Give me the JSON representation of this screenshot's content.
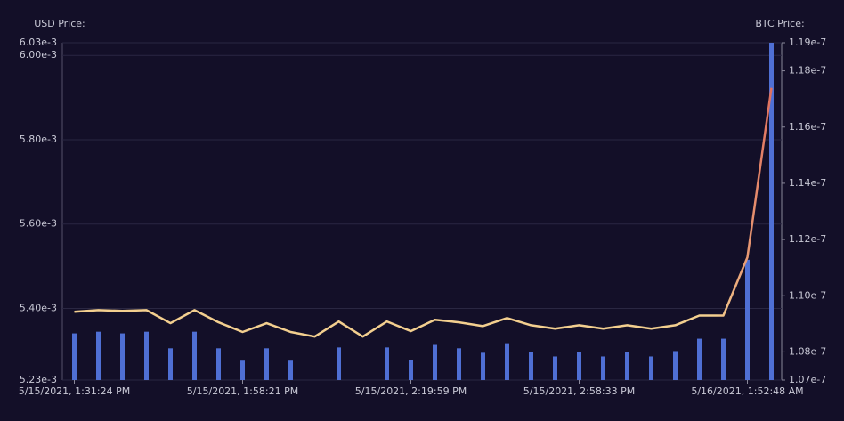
{
  "chart_data": {
    "type": "line-bar",
    "y_label": "USD Price:",
    "y2_label": "BTC Price:",
    "categories": [
      "5/15/2021, 1:31:24 PM",
      null,
      null,
      null,
      null,
      null,
      null,
      "5/15/2021, 1:58:21 PM",
      null,
      null,
      null,
      null,
      null,
      null,
      "5/15/2021, 2:19:59 PM",
      null,
      null,
      null,
      null,
      null,
      null,
      "5/15/2021, 2:58:33 PM",
      null,
      null,
      null,
      null,
      null,
      null,
      "5/16/2021, 1:52:48 AM",
      null
    ],
    "series": [
      {
        "type": "line",
        "color": "#f3cf8f",
        "end_color": "#e0705e",
        "values": [
          0.005392,
          0.005396,
          0.005394,
          0.005396,
          0.005365,
          0.005396,
          0.005367,
          0.005344,
          0.005365,
          0.005344,
          0.005333,
          0.005369,
          0.005333,
          0.005369,
          0.005346,
          0.005373,
          0.005367,
          0.005358,
          0.005377,
          0.00536,
          0.005352,
          0.00536,
          0.005352,
          0.00536,
          0.005352,
          0.00536,
          0.005383,
          0.005383,
          0.005521,
          0.005923
        ]
      },
      {
        "type": "bar",
        "axis": "y2",
        "color": "#4f6fd4",
        "values": [
          1.0866e-07,
          1.0872e-07,
          1.0866e-07,
          1.0872e-07,
          1.0813e-07,
          1.0872e-07,
          1.0813e-07,
          1.0769e-07,
          1.0813e-07,
          1.0769e-07,
          null,
          1.0816e-07,
          null,
          1.0816e-07,
          1.0772e-07,
          1.0825e-07,
          1.0813e-07,
          1.0797e-07,
          1.0831e-07,
          1.08e-07,
          1.0784e-07,
          1.08e-07,
          1.0784e-07,
          1.08e-07,
          1.0784e-07,
          1.0803e-07,
          1.0847e-07,
          1.0847e-07,
          1.1128e-07,
          1.19e-07
        ]
      }
    ],
    "ylim": [
      0.00523,
      0.00603
    ],
    "yticks": [
      {
        "value": 0.00523,
        "label": "5.23e-3"
      },
      {
        "value": 0.0054,
        "label": "5.40e-3"
      },
      {
        "value": 0.0056,
        "label": "5.60e-3"
      },
      {
        "value": 0.0058,
        "label": "5.80e-3"
      },
      {
        "value": 0.006,
        "label": "6.00e-3"
      },
      {
        "value": 0.00603,
        "label": "6.03e-3"
      }
    ],
    "y2lim": [
      1.07e-07,
      1.19e-07
    ],
    "y2ticks": [
      {
        "value": 1.07e-07,
        "label": "1.07e-7"
      },
      {
        "value": 1.08e-07,
        "label": "1.08e-7"
      },
      {
        "value": 1.1e-07,
        "label": "1.10e-7"
      },
      {
        "value": 1.12e-07,
        "label": "1.12e-7"
      },
      {
        "value": 1.14e-07,
        "label": "1.14e-7"
      },
      {
        "value": 1.16e-07,
        "label": "1.16e-7"
      },
      {
        "value": 1.18e-07,
        "label": "1.18e-7"
      },
      {
        "value": 1.19e-07,
        "label": "1.19e-7"
      }
    ],
    "grid": true
  }
}
